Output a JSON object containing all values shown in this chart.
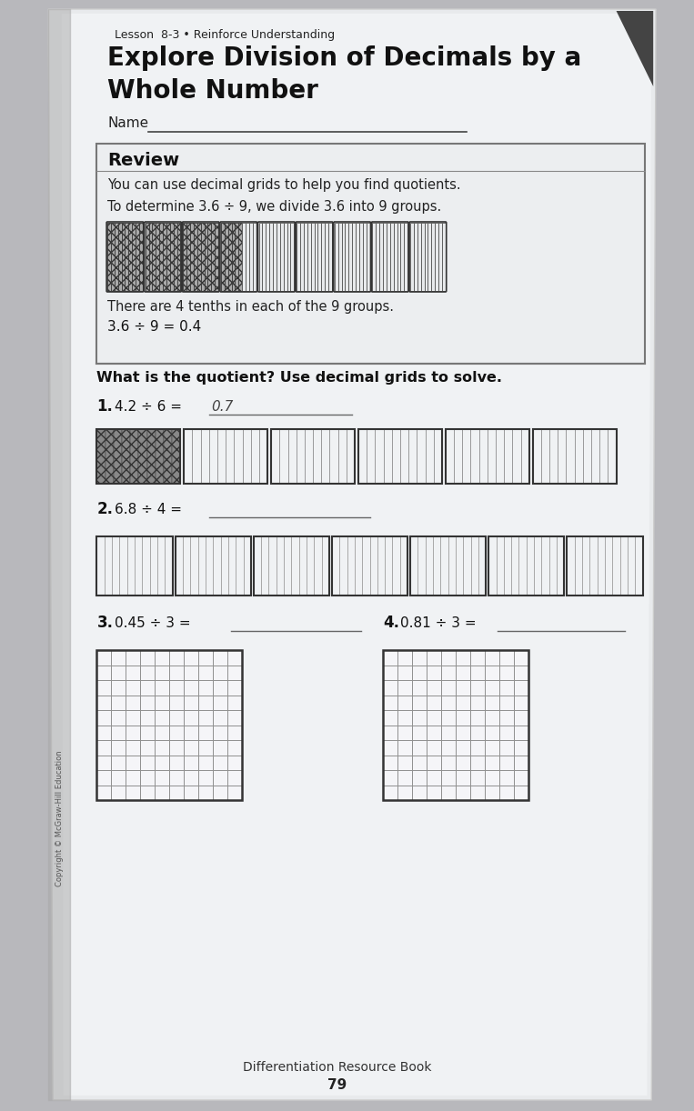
{
  "bg_color": "#b8b8bc",
  "page_bg": "#e8e8ec",
  "lesson_label": "Lesson  8-3 • Reinforce Understanding",
  "title_line1": "Explore Division of Decimals by a",
  "title_line2": "Whole Number",
  "name_label": "Name",
  "review_header": "Review",
  "review_text1": "You can use decimal grids to help you find quotients.",
  "review_text2": "To determine 3.6 ÷ 9, we divide 3.6 into 9 groups.",
  "review_text3": "There are 4 tenths in each of the 9 groups.",
  "review_equation": "3.6 ÷ 9 = 0.4",
  "question_header": "What is the quotient? Use decimal grids to solve.",
  "q1_label": "1.",
  "q1_text": "4.2 ÷ 6 =",
  "q1_answer": "0.7",
  "q2_label": "2.",
  "q2_text": "6.8 ÷ 4 =",
  "q3_label": "3.",
  "q3_text": "0.45 ÷ 3 =",
  "q4_label": "4.",
  "q4_text": "0.81 ÷ 3 =",
  "footer_text": "Differentiation Resource Book",
  "footer_page": "79",
  "copyright_text": "Copyright © McGraw-Hill Education"
}
